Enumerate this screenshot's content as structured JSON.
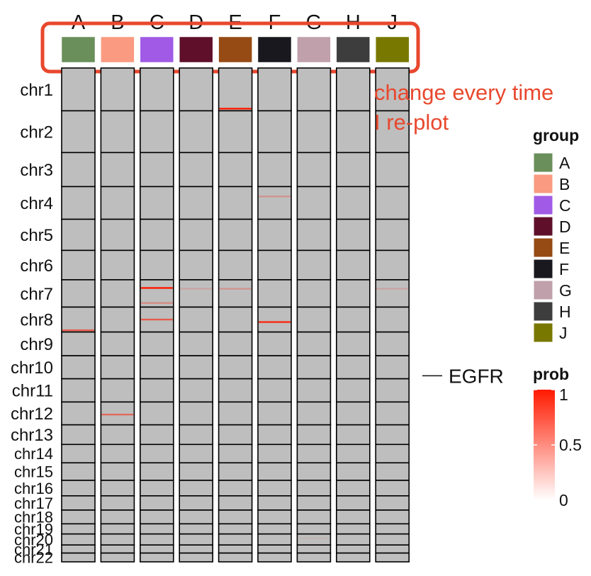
{
  "chart_data": {
    "type": "heatmap",
    "columns": [
      "A",
      "B",
      "C",
      "D",
      "E",
      "F",
      "G",
      "H",
      "J"
    ],
    "rows": [
      "chr1",
      "chr2",
      "chr3",
      "chr4",
      "chr5",
      "chr6",
      "chr7",
      "chr8",
      "chr9",
      "chr10",
      "chr11",
      "chr12",
      "chr13",
      "chr14",
      "chr15",
      "chr16",
      "chr17",
      "chr18",
      "chr19",
      "chr20",
      "chr21",
      "chr22"
    ],
    "row_relative_sizes": [
      249,
      243,
      198,
      190,
      181,
      171,
      159,
      145,
      138,
      134,
      135,
      133,
      114,
      107,
      102,
      90,
      83,
      80,
      59,
      64,
      47,
      51
    ],
    "base_color": "#bebebe",
    "group_colors": [
      "#6a8f5a",
      "#fa9a80",
      "#a05ae6",
      "#5f0f2a",
      "#964a14",
      "#18181e",
      "#c0a0aa",
      "#3d3d3d",
      "#787800"
    ],
    "highlights": [
      {
        "column": "A",
        "row": "chr8",
        "position": 0.93,
        "prob": 0.6
      },
      {
        "column": "B",
        "row": "chr12",
        "position": 0.55,
        "prob": 0.5
      },
      {
        "column": "C",
        "row": "chr7",
        "position": 0.3,
        "prob": 1.0
      },
      {
        "column": "C",
        "row": "chr7",
        "position": 0.85,
        "prob": 0.3
      },
      {
        "column": "C",
        "row": "chr8",
        "position": 0.5,
        "prob": 0.6
      },
      {
        "column": "D",
        "row": "chr7",
        "position": 0.33,
        "prob": 0.15
      },
      {
        "column": "E",
        "row": "chr1",
        "position": 0.95,
        "prob": 1.0
      },
      {
        "column": "E",
        "row": "chr7",
        "position": 0.33,
        "prob": 0.25
      },
      {
        "column": "F",
        "row": "chr4",
        "position": 0.3,
        "prob": 0.25
      },
      {
        "column": "F",
        "row": "chr8",
        "position": 0.6,
        "prob": 0.9
      },
      {
        "column": "G",
        "row": "chr20",
        "position": 0.4,
        "prob": 0.05
      },
      {
        "column": "J",
        "row": "chr7",
        "position": 0.33,
        "prob": 0.15
      }
    ],
    "row_annotation": {
      "label": "EGFR",
      "row": "chr10"
    },
    "legend_group": {
      "title": "group",
      "labels": [
        "A",
        "B",
        "C",
        "D",
        "E",
        "F",
        "G",
        "H",
        "J"
      ]
    },
    "legend_prob": {
      "title": "prob",
      "ticks": [
        "1",
        "0.5",
        "0"
      ],
      "tick_values": [
        1,
        0.5,
        0
      ],
      "range": [
        0,
        1
      ],
      "colors": [
        "#ffffff",
        "#ff1a00"
      ]
    },
    "annotation_note": {
      "lines": [
        "change every time",
        "I re-plot"
      ],
      "color": "#e8482e"
    }
  }
}
